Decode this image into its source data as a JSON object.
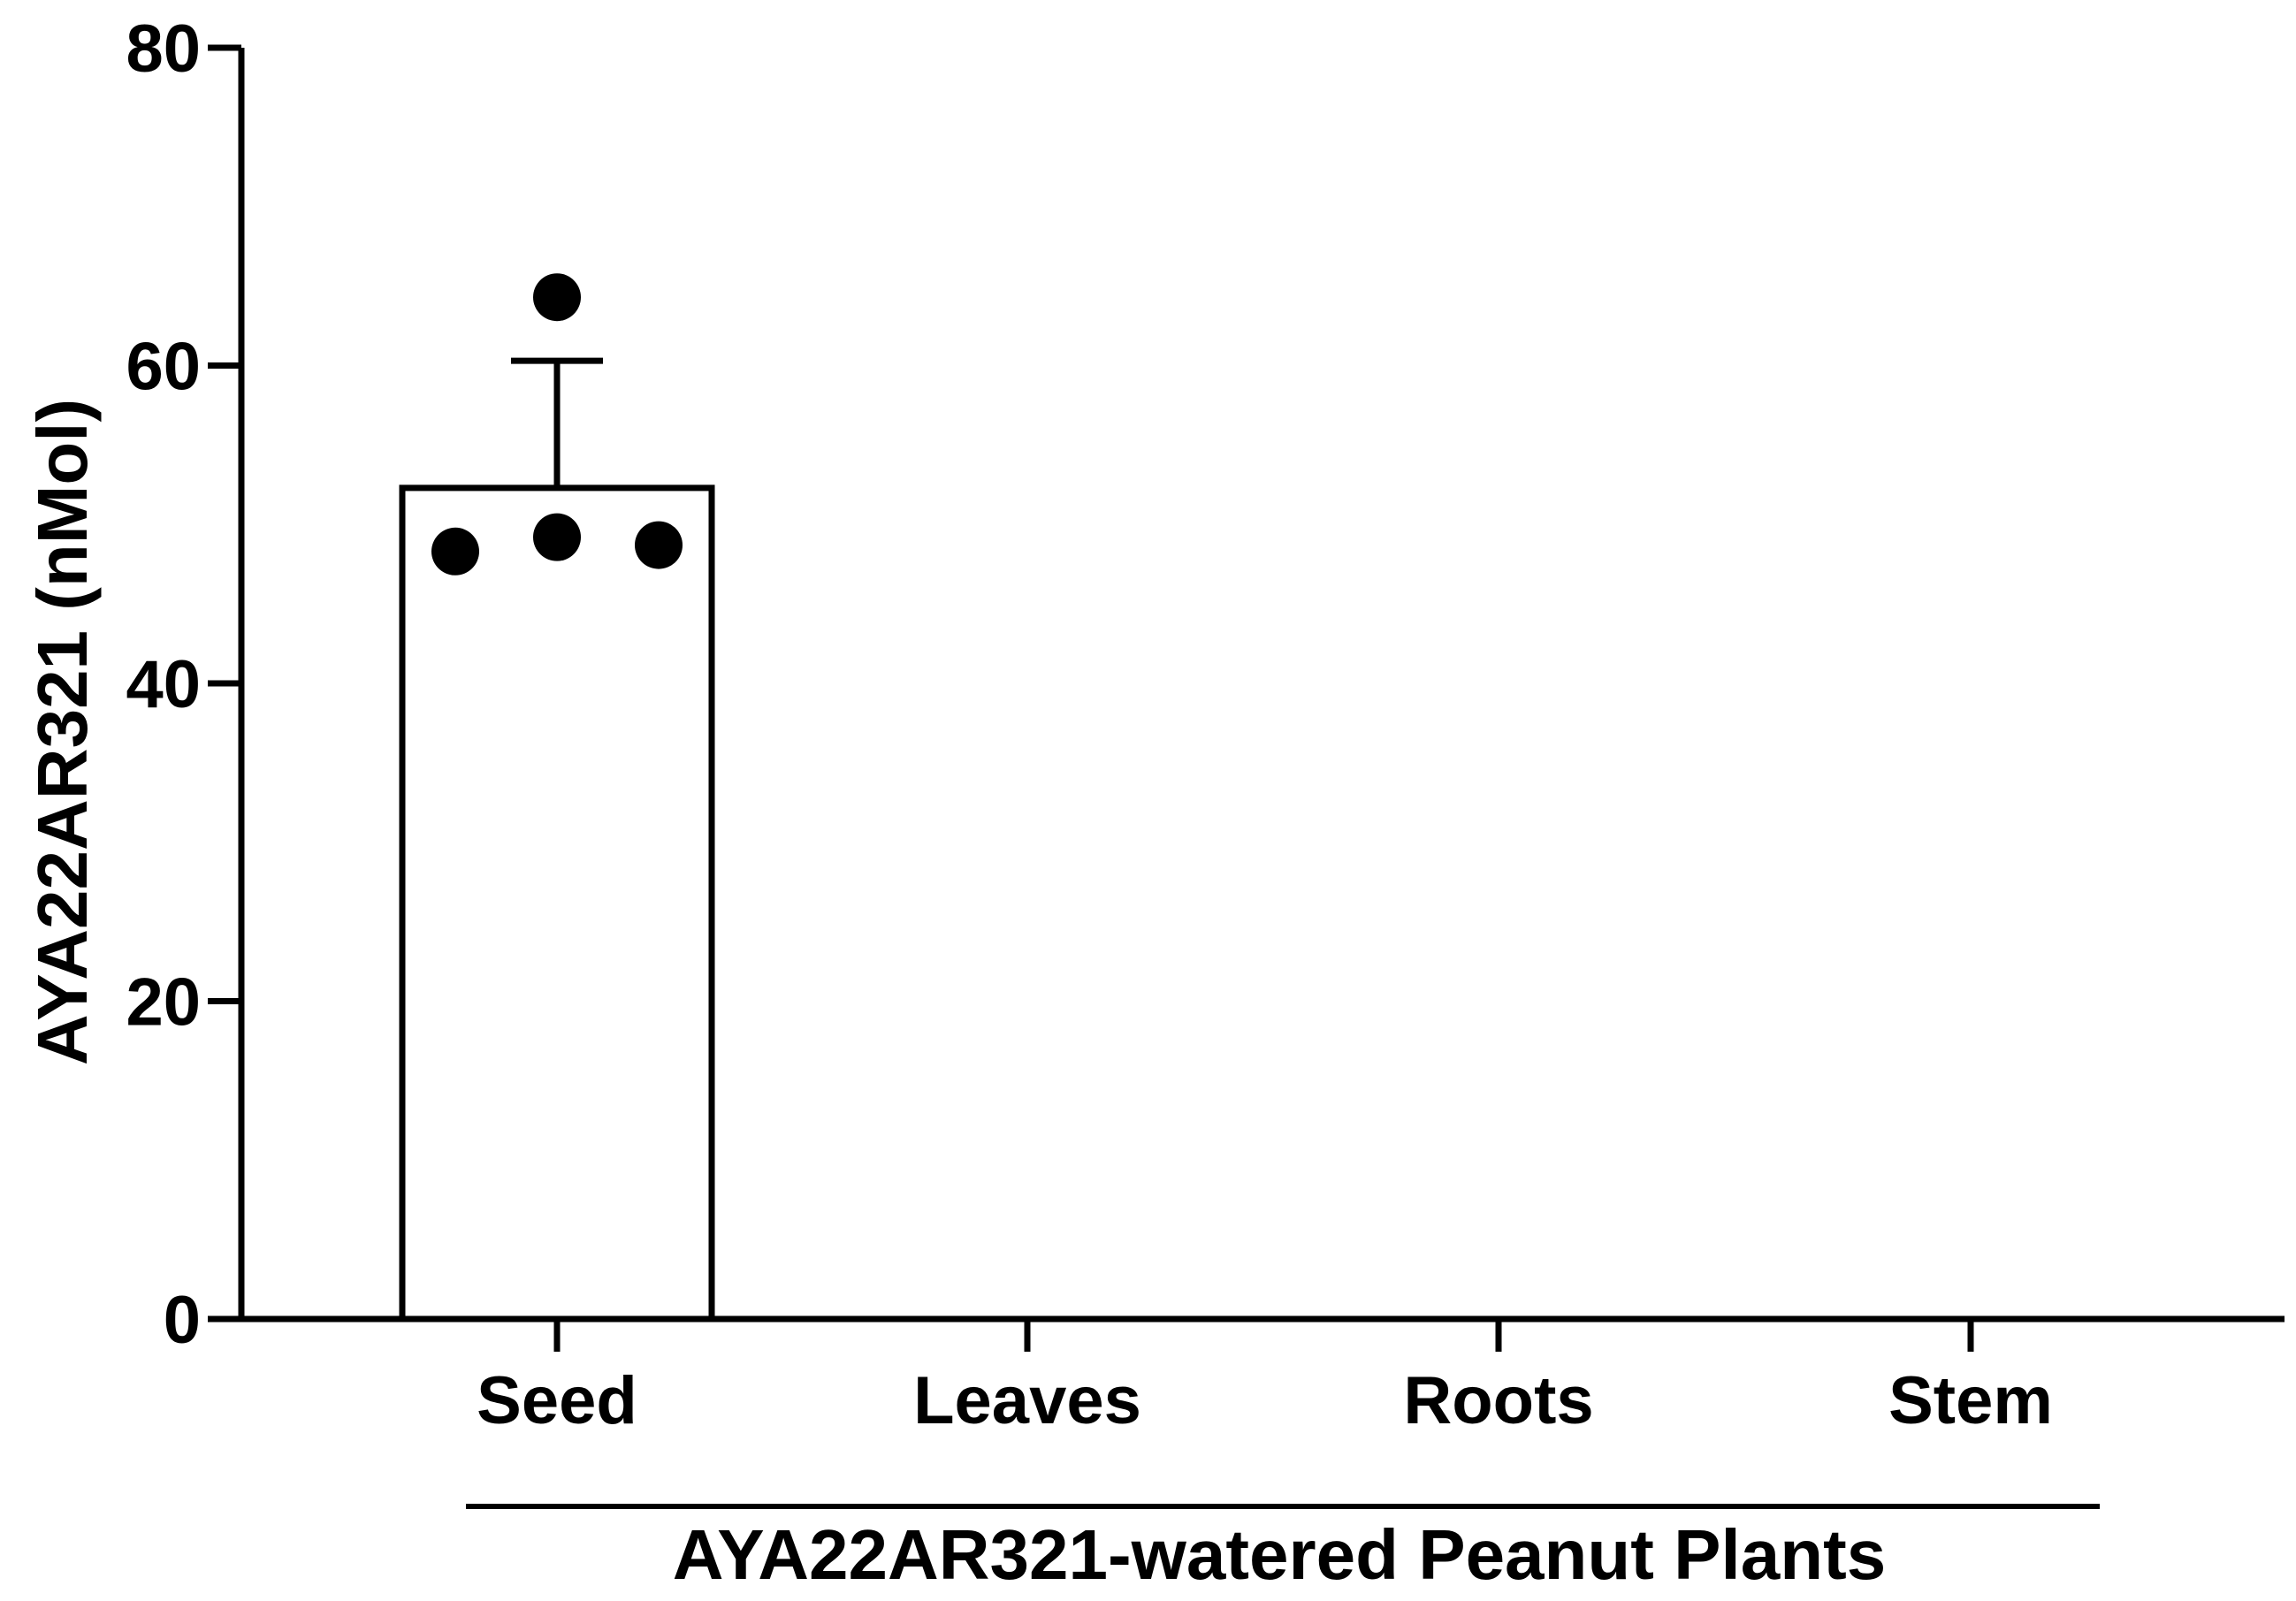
{
  "chart_data": {
    "type": "bar",
    "categories": [
      "Seed",
      "Leaves",
      "Roots",
      "Stem"
    ],
    "values": [
      52.3,
      0,
      0,
      0
    ],
    "error": [
      8.0,
      0,
      0,
      0
    ],
    "points": [
      [
        48.3,
        49.2,
        48.7,
        64.3
      ],
      [],
      [],
      []
    ],
    "ylabel": "AYA22AR321 (nMol)",
    "group_label": "AYA22AR321-watered Peanut Plants",
    "ylim": [
      0,
      80
    ],
    "yticks": [
      0,
      20,
      40,
      60,
      80
    ],
    "grid": false,
    "bar_fill": "#ffffff",
    "ink_color": "#000000"
  }
}
